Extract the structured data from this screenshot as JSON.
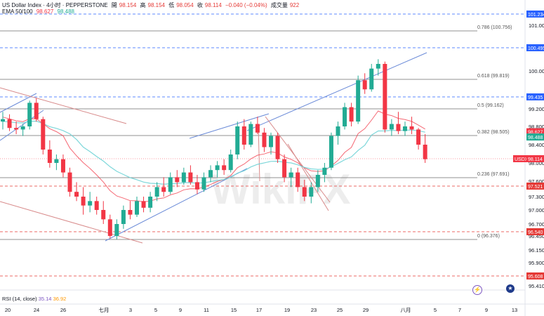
{
  "header": {
    "symbol": "US Dollar Index · 4小时 · PEPPERSTONE",
    "open_label": "開",
    "open": "98.154",
    "high_label": "高",
    "high": "98.154",
    "low_label": "低",
    "low": "98.054",
    "close_label": "收",
    "close": "98.114",
    "change": "−0.040 (−0.04%)",
    "volume_label": "成交量",
    "volume": "922",
    "ema_label": "EMA 50/100",
    "ema1": "98.627",
    "ema2": "98.488"
  },
  "rsi": {
    "label": "RSI (14, close)",
    "v1": "35.14",
    "v2": "36.92"
  },
  "watermark": "WikiFX",
  "colors": {
    "up": "#22ab94",
    "down": "#f23645",
    "ema_fast": "#f23645",
    "ema_slow": "#6fd3d6",
    "trend": "#6b8bd8",
    "channel": "#d88a8a",
    "dashed_blue": "#2962ff",
    "dashed_red": "#e53935"
  },
  "chart_data": {
    "type": "candlestick",
    "title": "US Dollar Index · 4小时 · PEPPERSTONE",
    "y_axis": {
      "ticks": [
        "101.000",
        "100.000",
        "99.200",
        "98.800",
        "98.400",
        "98.000",
        "97.600",
        "97.300",
        "97.000",
        "96.700",
        "96.450",
        "96.150",
        "95.900",
        "95.410"
      ]
    },
    "x_axis": {
      "ticks": [
        "20",
        "24",
        "26",
        "七月",
        "3",
        "5",
        "9",
        "11",
        "15",
        "17",
        "19",
        "23",
        "25",
        "29",
        "八月",
        "5",
        "7",
        "9",
        "13"
      ]
    },
    "horizontal_levels": [
      {
        "label": "0.786 (100.756)",
        "value": 100.756
      },
      {
        "label": "0.618 (99.819)",
        "value": 99.819
      },
      {
        "label": "0.5 (99.162)",
        "value": 99.162
      },
      {
        "label": "0.382 (98.505)",
        "value": 98.505
      },
      {
        "label": "0.236 (97.691)",
        "value": 97.691
      },
      {
        "label": "0 (96.376)",
        "value": 96.376
      }
    ],
    "price_tags": [
      {
        "value": "101.234",
        "color": "#2962ff"
      },
      {
        "value": "100.495",
        "color": "#2962ff"
      },
      {
        "value": "99.435",
        "color": "#2962ff"
      },
      {
        "value": "98.627",
        "color": "#f23645"
      },
      {
        "value": "98.488",
        "color": "#22ab94"
      },
      {
        "value": "98.114",
        "color": "#f23645",
        "prefix": "USDX"
      },
      {
        "value": "97.521",
        "color": "#e53935"
      },
      {
        "value": "96.540",
        "color": "#e53935"
      },
      {
        "value": "95.608",
        "color": "#e53935"
      }
    ],
    "candles": [
      [
        98.9,
        99.1,
        98.7,
        98.95
      ],
      [
        98.95,
        99.05,
        98.65,
        98.75
      ],
      [
        98.75,
        98.9,
        98.55,
        98.7
      ],
      [
        98.7,
        98.85,
        98.5,
        98.8
      ],
      [
        98.8,
        99.35,
        98.7,
        99.3
      ],
      [
        99.3,
        99.4,
        98.9,
        98.95
      ],
      [
        98.95,
        99.0,
        98.2,
        98.3
      ],
      [
        98.3,
        98.45,
        97.9,
        98.0
      ],
      [
        98.0,
        98.2,
        97.85,
        98.1
      ],
      [
        98.1,
        98.2,
        97.7,
        97.8
      ],
      [
        97.8,
        97.9,
        97.3,
        97.4
      ],
      [
        97.4,
        97.6,
        97.2,
        97.3
      ],
      [
        97.3,
        97.5,
        96.9,
        97.1
      ],
      [
        97.1,
        97.4,
        96.95,
        97.2
      ],
      [
        97.2,
        97.3,
        96.9,
        97.0
      ],
      [
        97.0,
        97.2,
        96.7,
        96.8
      ],
      [
        96.8,
        96.9,
        96.4,
        96.45
      ],
      [
        96.45,
        96.8,
        96.38,
        96.7
      ],
      [
        96.7,
        97.1,
        96.6,
        97.0
      ],
      [
        97.0,
        97.2,
        96.8,
        96.9
      ],
      [
        96.9,
        97.3,
        96.85,
        97.2
      ],
      [
        97.2,
        97.3,
        96.95,
        97.05
      ],
      [
        97.05,
        97.4,
        96.95,
        97.3
      ],
      [
        97.3,
        97.6,
        97.2,
        97.5
      ],
      [
        97.5,
        97.7,
        97.3,
        97.4
      ],
      [
        97.4,
        97.8,
        97.35,
        97.7
      ],
      [
        97.7,
        97.85,
        97.5,
        97.6
      ],
      [
        97.6,
        97.9,
        97.55,
        97.8
      ],
      [
        97.8,
        97.95,
        97.55,
        97.6
      ],
      [
        97.6,
        97.75,
        97.35,
        97.45
      ],
      [
        97.45,
        97.8,
        97.4,
        97.7
      ],
      [
        97.7,
        97.95,
        97.6,
        97.85
      ],
      [
        97.85,
        98.05,
        97.7,
        97.95
      ],
      [
        97.95,
        98.1,
        97.75,
        97.85
      ],
      [
        97.85,
        98.3,
        97.8,
        98.2
      ],
      [
        98.2,
        98.9,
        98.1,
        98.8
      ],
      [
        98.8,
        98.95,
        98.3,
        98.4
      ],
      [
        98.4,
        98.9,
        98.35,
        98.85
      ],
      [
        98.85,
        99.0,
        98.55,
        98.6
      ],
      [
        98.6,
        98.75,
        98.25,
        98.35
      ],
      [
        98.35,
        98.6,
        98.2,
        98.5
      ],
      [
        98.5,
        98.6,
        98.0,
        98.1
      ],
      [
        98.1,
        98.2,
        97.6,
        97.7
      ],
      [
        97.7,
        97.9,
        97.5,
        97.8
      ],
      [
        97.8,
        97.9,
        97.4,
        97.5
      ],
      [
        97.5,
        97.65,
        97.2,
        97.3
      ],
      [
        97.3,
        97.6,
        97.15,
        97.5
      ],
      [
        97.5,
        97.85,
        97.4,
        97.75
      ],
      [
        97.75,
        98.0,
        97.6,
        97.9
      ],
      [
        97.9,
        98.6,
        97.85,
        98.5
      ],
      [
        98.5,
        98.9,
        98.4,
        98.8
      ],
      [
        98.8,
        99.3,
        98.7,
        99.2
      ],
      [
        99.2,
        99.3,
        98.8,
        98.9
      ],
      [
        98.9,
        99.9,
        98.85,
        99.8
      ],
      [
        99.8,
        99.95,
        99.5,
        99.6
      ],
      [
        99.6,
        100.15,
        99.55,
        100.05
      ],
      [
        100.05,
        100.25,
        99.9,
        100.15
      ],
      [
        100.15,
        100.2,
        98.6,
        98.7
      ],
      [
        98.7,
        98.95,
        98.5,
        98.85
      ],
      [
        98.85,
        99.1,
        98.55,
        98.65
      ],
      [
        98.65,
        98.9,
        98.5,
        98.8
      ],
      [
        98.8,
        99.0,
        98.55,
        98.7
      ],
      [
        98.7,
        98.75,
        98.3,
        98.4
      ],
      [
        98.4,
        98.55,
        98.0,
        98.1
      ]
    ]
  }
}
